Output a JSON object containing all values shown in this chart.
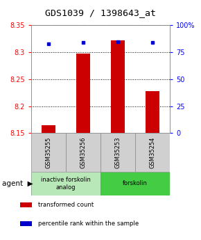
{
  "title": "GDS1039 / 1398643_at",
  "samples": [
    "GSM35255",
    "GSM35256",
    "GSM35253",
    "GSM35254"
  ],
  "bar_values": [
    8.165,
    8.298,
    8.322,
    8.228
  ],
  "percentile_values": [
    83,
    84,
    85,
    84
  ],
  "bar_color": "#cc0000",
  "percentile_color": "#0000cc",
  "ylim_left": [
    8.15,
    8.35
  ],
  "ylim_right": [
    0,
    100
  ],
  "yticks_left": [
    8.15,
    8.2,
    8.25,
    8.3,
    8.35
  ],
  "yticks_right": [
    0,
    25,
    50,
    75,
    100
  ],
  "ytick_labels_right": [
    "0",
    "25",
    "50",
    "75",
    "100%"
  ],
  "bar_base": 8.15,
  "agent_groups": [
    {
      "label": "inactive forskolin\nanalog",
      "color": "#b8e8b8",
      "samples": [
        0,
        1
      ]
    },
    {
      "label": "forskolin",
      "color": "#44cc44",
      "samples": [
        2,
        3
      ]
    }
  ],
  "legend_items": [
    {
      "color": "#cc0000",
      "label": "transformed count"
    },
    {
      "color": "#0000cc",
      "label": "percentile rank within the sample"
    }
  ],
  "title_fontsize": 9.5,
  "tick_fontsize": 7,
  "sample_fontsize": 6,
  "bar_width": 0.4
}
